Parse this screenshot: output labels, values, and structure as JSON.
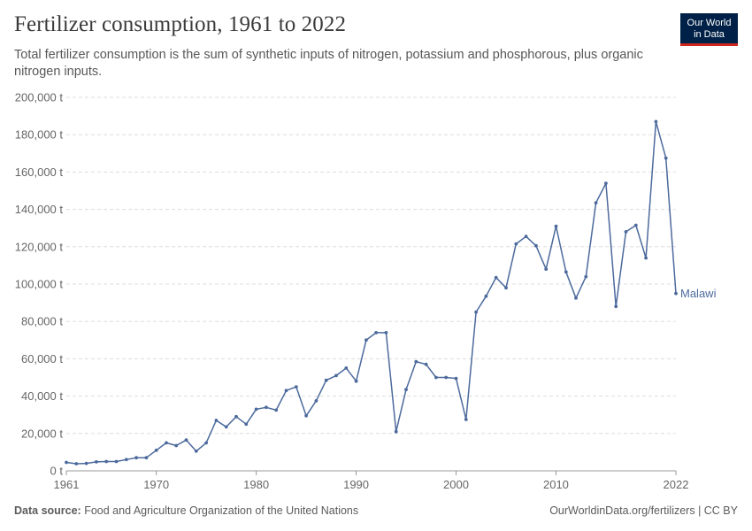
{
  "header": {
    "title": "Fertilizer consumption, 1961 to 2022",
    "subtitle": "Total fertilizer consumption is the sum of synthetic inputs of nitrogen, potassium and phosphorous, plus organic nitrogen inputs.",
    "logo_line1": "Our World",
    "logo_line2": "in Data"
  },
  "footer": {
    "source_label": "Data source:",
    "source_text": "Food and Agriculture Organization of the United Nations",
    "url_license": "OurWorldinData.org/fertilizers | CC BY"
  },
  "colors": {
    "series": "#4c6a9c",
    "grid": "#dddddd",
    "axis_text": "#666666"
  },
  "chart_data": {
    "type": "line",
    "title": "Fertilizer consumption, 1961 to 2022",
    "xlabel": "",
    "ylabel": "",
    "xlim": [
      1961,
      2022
    ],
    "ylim": [
      0,
      200000
    ],
    "x_ticks": [
      "1961",
      "1970",
      "1980",
      "1990",
      "2000",
      "2010",
      "2022"
    ],
    "y_ticks": [
      "0 t",
      "20,000 t",
      "40,000 t",
      "60,000 t",
      "80,000 t",
      "100,000 t",
      "120,000 t",
      "140,000 t",
      "160,000 t",
      "180,000 t",
      "200,000 t"
    ],
    "grid": true,
    "legend": "end-of-line label",
    "series": [
      {
        "name": "Malawi",
        "x": [
          1961,
          1962,
          1963,
          1964,
          1965,
          1966,
          1967,
          1968,
          1969,
          1970,
          1971,
          1972,
          1973,
          1974,
          1975,
          1976,
          1977,
          1978,
          1979,
          1980,
          1981,
          1982,
          1983,
          1984,
          1985,
          1986,
          1987,
          1988,
          1989,
          1990,
          1991,
          1992,
          1993,
          1994,
          1995,
          1996,
          1997,
          1998,
          1999,
          2000,
          2001,
          2002,
          2003,
          2004,
          2005,
          2006,
          2007,
          2008,
          2009,
          2010,
          2011,
          2012,
          2013,
          2014,
          2015,
          2016,
          2017,
          2018,
          2019,
          2020,
          2021,
          2022
        ],
        "values": [
          4500,
          3800,
          4000,
          4800,
          5000,
          5000,
          6000,
          7000,
          7000,
          11000,
          15000,
          13500,
          16500,
          10500,
          15000,
          27000,
          23500,
          29000,
          25000,
          33000,
          34000,
          32500,
          43000,
          45000,
          29500,
          37500,
          48500,
          51000,
          55000,
          48000,
          70000,
          74000,
          74000,
          21000,
          43500,
          58500,
          57000,
          50000,
          50000,
          49500,
          27500,
          85000,
          93500,
          103500,
          98000,
          121500,
          125500,
          120500,
          108000,
          131000,
          106500,
          92500,
          104000,
          143500,
          154000,
          88000,
          128000,
          131500,
          114000,
          187000,
          167500,
          95000
        ]
      }
    ]
  }
}
